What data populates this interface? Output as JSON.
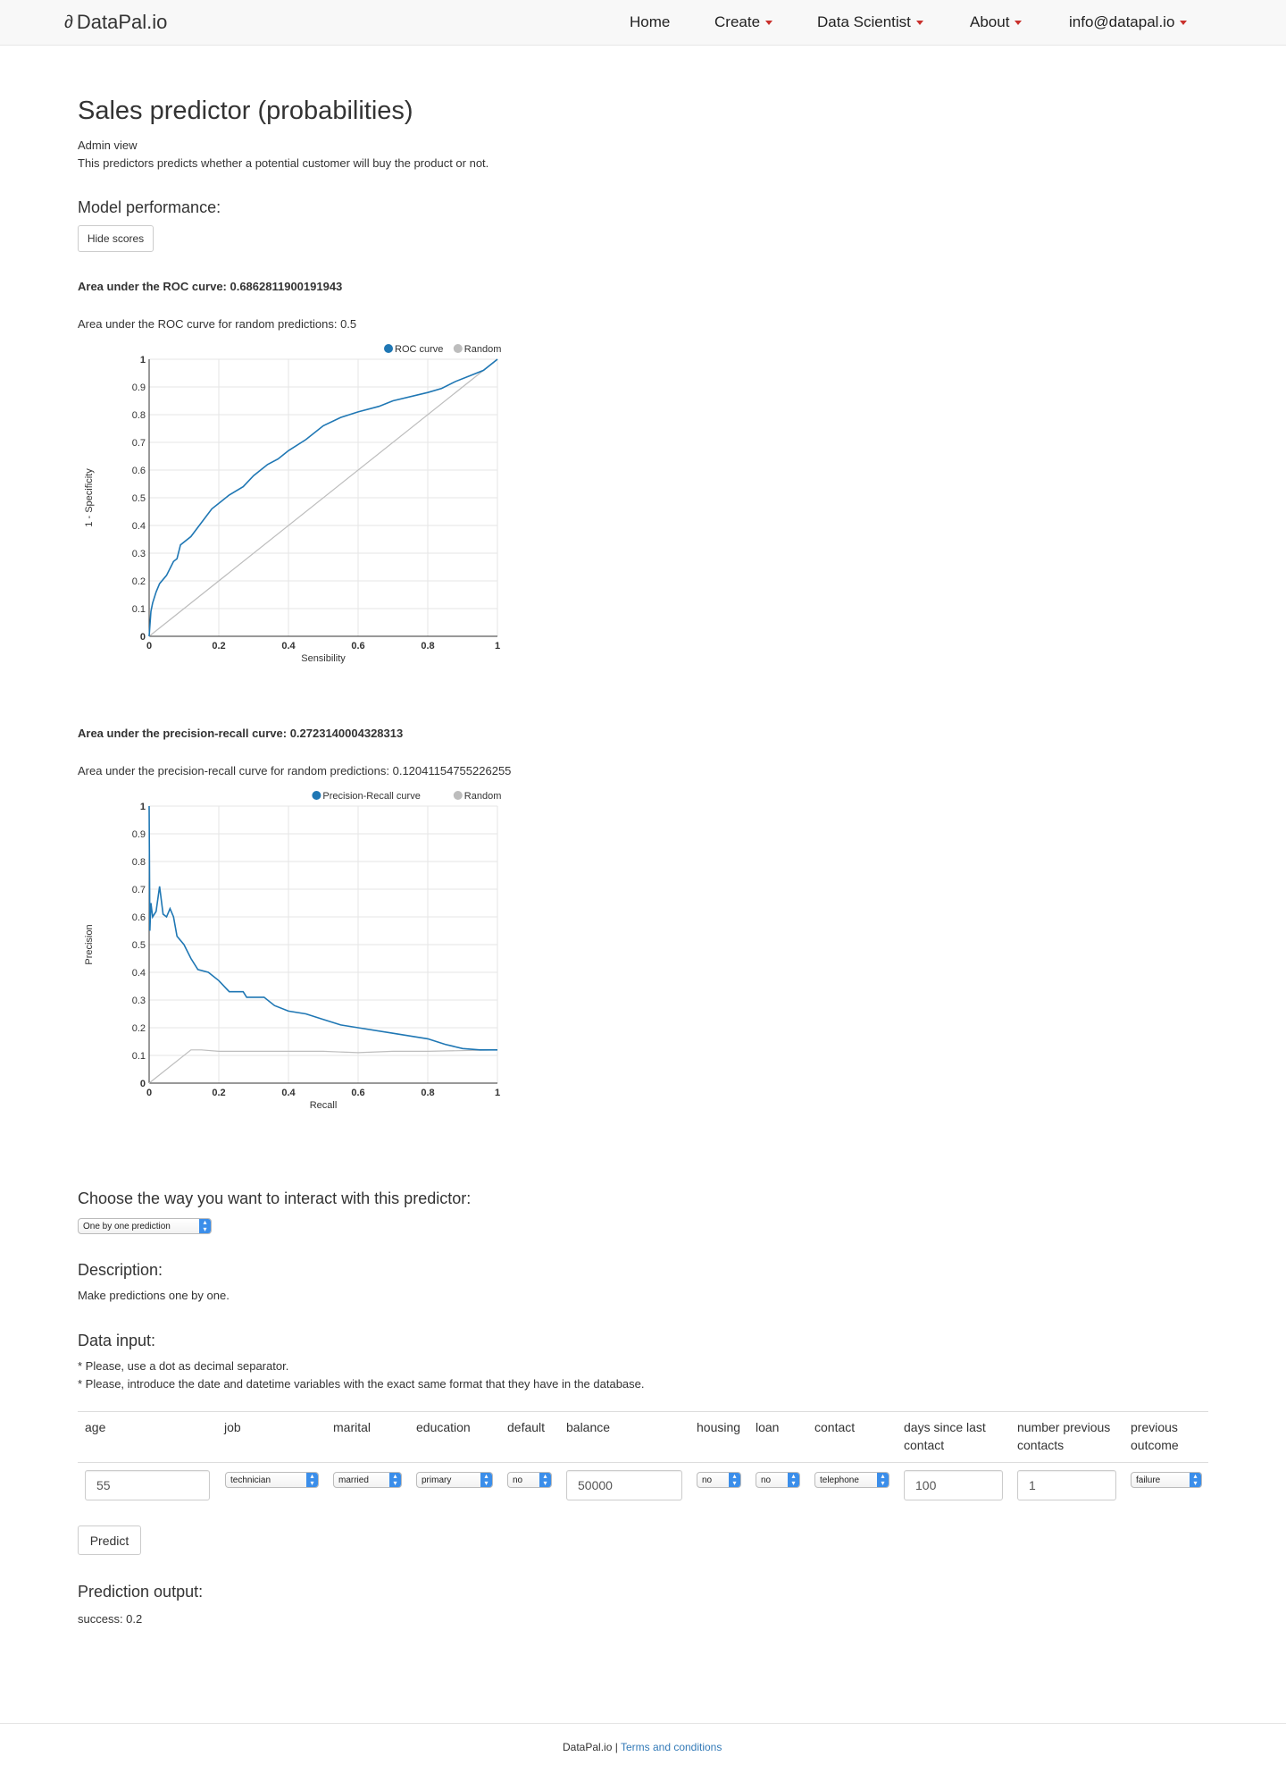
{
  "nav": {
    "brand": "DataPal.io",
    "items": [
      {
        "label": "Home",
        "dropdown": false
      },
      {
        "label": "Create",
        "dropdown": true
      },
      {
        "label": "Data Scientist",
        "dropdown": true
      },
      {
        "label": "About",
        "dropdown": true
      },
      {
        "label": "info@datapal.io",
        "dropdown": true
      }
    ]
  },
  "page": {
    "title": "Sales predictor (probabilities)",
    "admin_link": "Admin view",
    "description": "This predictors predicts whether a potential customer will buy the product or not.",
    "model_performance_heading": "Model performance:",
    "hide_scores_button": "Hide scores",
    "roc_auc_text": "Area under the ROC curve: 0.6862811900191943",
    "roc_random_text": "Area under the ROC curve for random predictions: 0.5",
    "pr_auc_text": "Area under the precision-recall curve: 0.2723140004328313",
    "pr_random_text": "Area under the precision-recall curve for random predictions: 0.12041154755226255",
    "interact_heading": "Choose the way you want to interact with this predictor:",
    "interact_select": "One by one prediction",
    "description_heading": "Description:",
    "description_text": "Make predictions one by one.",
    "data_input_heading": "Data input:",
    "note1": "* Please, use a dot as decimal separator.",
    "note2": "* Please, introduce the date and datetime variables with the exact same format that they have in the database.",
    "predict_button": "Predict",
    "output_heading": "Prediction output:",
    "output_text": "success: 0.2"
  },
  "table": {
    "headers": [
      "age",
      "job",
      "marital",
      "education",
      "default",
      "balance",
      "housing",
      "loan",
      "contact",
      "days since last contact",
      "number previous contacts",
      "previous outcome"
    ],
    "values": {
      "age": "55",
      "job": "technician",
      "marital": "married",
      "education": "primary",
      "default": "no",
      "balance": "50000",
      "housing": "no",
      "loan": "no",
      "contact": "telephone",
      "days": "100",
      "previous_contacts": "1",
      "previous_outcome": "failure"
    }
  },
  "footer": {
    "brand": "DataPal.io",
    "separator": "|",
    "terms": "Terms and conditions"
  },
  "colors": {
    "series_blue": "#1f77b4",
    "random_gray": "#bdbdbd",
    "caret_red": "#c9302c",
    "link_blue": "#337ab7"
  },
  "chart_data": [
    {
      "type": "line",
      "xlabel": "Sensibility",
      "ylabel": "1 - Specificity",
      "xlim": [
        0,
        1
      ],
      "ylim": [
        0,
        1
      ],
      "x_ticks": [
        "0",
        "0.2",
        "0.4",
        "0.6",
        "0.8",
        "1"
      ],
      "y_ticks": [
        "0",
        "0.1",
        "0.2",
        "0.3",
        "0.4",
        "0.5",
        "0.6",
        "0.7",
        "0.8",
        "0.9",
        "1"
      ],
      "legend": "top-right",
      "grid": true,
      "series": [
        {
          "name": "ROC curve",
          "color": "#1f77b4",
          "points": [
            [
              0,
              0
            ],
            [
              0.005,
              0.09
            ],
            [
              0.01,
              0.12
            ],
            [
              0.02,
              0.16
            ],
            [
              0.03,
              0.19
            ],
            [
              0.05,
              0.22
            ],
            [
              0.07,
              0.27
            ],
            [
              0.08,
              0.28
            ],
            [
              0.09,
              0.33
            ],
            [
              0.12,
              0.36
            ],
            [
              0.15,
              0.41
            ],
            [
              0.18,
              0.46
            ],
            [
              0.2,
              0.48
            ],
            [
              0.23,
              0.51
            ],
            [
              0.27,
              0.54
            ],
            [
              0.3,
              0.58
            ],
            [
              0.34,
              0.62
            ],
            [
              0.37,
              0.64
            ],
            [
              0.4,
              0.67
            ],
            [
              0.45,
              0.71
            ],
            [
              0.5,
              0.76
            ],
            [
              0.55,
              0.79
            ],
            [
              0.6,
              0.81
            ],
            [
              0.66,
              0.83
            ],
            [
              0.7,
              0.85
            ],
            [
              0.8,
              0.88
            ],
            [
              0.84,
              0.895
            ],
            [
              0.88,
              0.92
            ],
            [
              0.92,
              0.94
            ],
            [
              0.96,
              0.96
            ],
            [
              1,
              1
            ]
          ]
        },
        {
          "name": "Random",
          "color": "#bdbdbd",
          "points": [
            [
              0,
              0
            ],
            [
              1,
              1
            ]
          ]
        }
      ]
    },
    {
      "type": "line",
      "xlabel": "Recall",
      "ylabel": "Precision",
      "xlim": [
        0,
        1
      ],
      "ylim": [
        0,
        1
      ],
      "x_ticks": [
        "0",
        "0.2",
        "0.4",
        "0.6",
        "0.8",
        "1"
      ],
      "y_ticks": [
        "0",
        "0.1",
        "0.2",
        "0.3",
        "0.4",
        "0.5",
        "0.6",
        "0.7",
        "0.8",
        "0.9",
        "1"
      ],
      "legend": "top-right",
      "grid": true,
      "series": [
        {
          "name": "Precision-Recall curve",
          "color": "#1f77b4",
          "points": [
            [
              0,
              1
            ],
            [
              0.002,
              0.55
            ],
            [
              0.005,
              0.65
            ],
            [
              0.01,
              0.6
            ],
            [
              0.02,
              0.62
            ],
            [
              0.03,
              0.71
            ],
            [
              0.04,
              0.61
            ],
            [
              0.05,
              0.6
            ],
            [
              0.06,
              0.63
            ],
            [
              0.07,
              0.6
            ],
            [
              0.08,
              0.53
            ],
            [
              0.1,
              0.5
            ],
            [
              0.12,
              0.45
            ],
            [
              0.14,
              0.41
            ],
            [
              0.17,
              0.4
            ],
            [
              0.2,
              0.37
            ],
            [
              0.23,
              0.33
            ],
            [
              0.27,
              0.33
            ],
            [
              0.28,
              0.31
            ],
            [
              0.33,
              0.31
            ],
            [
              0.36,
              0.28
            ],
            [
              0.4,
              0.26
            ],
            [
              0.45,
              0.25
            ],
            [
              0.5,
              0.23
            ],
            [
              0.55,
              0.21
            ],
            [
              0.6,
              0.2
            ],
            [
              0.7,
              0.18
            ],
            [
              0.8,
              0.16
            ],
            [
              0.85,
              0.14
            ],
            [
              0.9,
              0.125
            ],
            [
              0.95,
              0.12
            ],
            [
              1,
              0.12
            ]
          ]
        },
        {
          "name": "Random",
          "color": "#bdbdbd",
          "points": [
            [
              0,
              0
            ],
            [
              0.12,
              0.12
            ],
            [
              0.15,
              0.12
            ],
            [
              0.2,
              0.115
            ],
            [
              0.3,
              0.115
            ],
            [
              0.4,
              0.115
            ],
            [
              0.5,
              0.115
            ],
            [
              0.6,
              0.11
            ],
            [
              0.7,
              0.115
            ],
            [
              0.8,
              0.115
            ],
            [
              1,
              0.12
            ]
          ]
        }
      ]
    }
  ]
}
